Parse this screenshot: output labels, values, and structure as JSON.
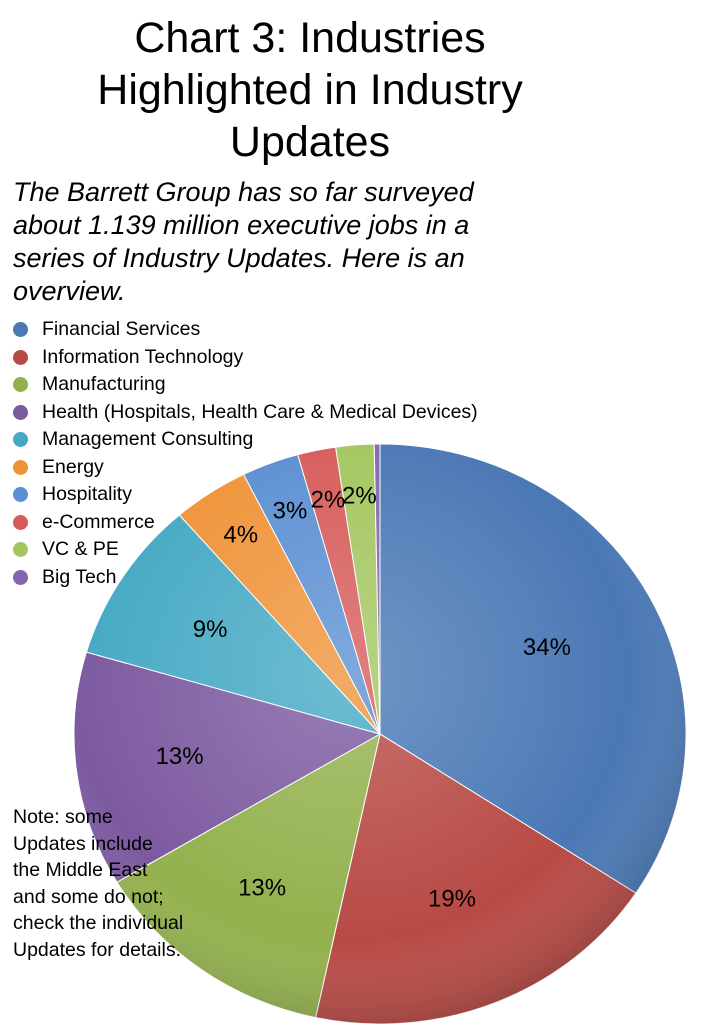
{
  "title_lines": [
    "Chart 3: Industries",
    "Highlighted in Industry",
    "Updates"
  ],
  "subtitle_lines": [
    "The Barrett Group has so far surveyed",
    "about 1.139 million executive jobs in a",
    "series of Industry Updates.  Here is an",
    "overview."
  ],
  "note_lines": [
    "Note: some",
    "Updates include",
    "the Middle East",
    "and some do not;",
    "check the individual",
    "Updates for details."
  ],
  "chart_data": {
    "type": "pie",
    "legend_position": "top-left",
    "categories": [
      "Financial Services",
      "Information Technology",
      "Manufacturing",
      "Health (Hospitals, Health Care & Medical Devices)",
      "Management Consulting",
      "Energy",
      "Hospitality",
      "e-Commerce",
      "VC & PE",
      "Big Tech"
    ],
    "values": [
      34,
      19,
      13,
      13,
      9,
      4,
      3,
      2,
      2,
      0.3
    ],
    "labels": [
      "34%",
      "19%",
      "13%",
      "13%",
      "9%",
      "4%",
      "3%",
      "2%",
      "2%",
      ""
    ],
    "colors": [
      "#4a78b5",
      "#b84a45",
      "#93b14d",
      "#7c5aa0",
      "#45a9c4",
      "#ef9339",
      "#5b8fd2",
      "#d65c5a",
      "#a3c65f",
      "#8466b0"
    ]
  }
}
